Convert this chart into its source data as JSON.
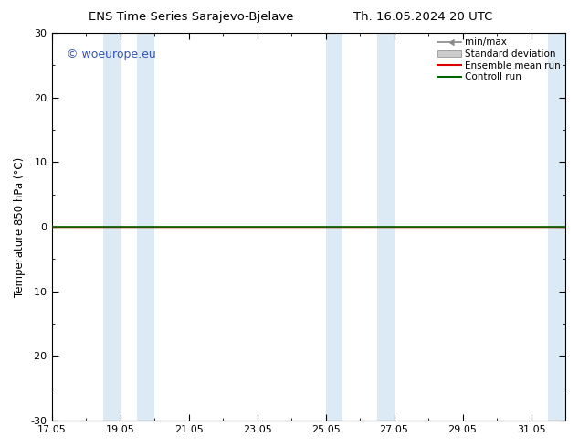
{
  "title_left": "ENS Time Series Sarajevo-Bjelave",
  "title_right": "Th. 16.05.2024 20 UTC",
  "ylabel": "Temperature 850 hPa (°C)",
  "ylim": [
    -30,
    30
  ],
  "yticks": [
    -30,
    -20,
    -10,
    0,
    10,
    20,
    30
  ],
  "xtick_labels": [
    "17.05",
    "19.05",
    "21.05",
    "23.05",
    "25.05",
    "27.05",
    "29.05",
    "31.05"
  ],
  "xtick_positions": [
    0,
    2,
    4,
    6,
    8,
    10,
    12,
    14
  ],
  "xlim": [
    0,
    15
  ],
  "watermark": "© woeurope.eu",
  "background_color": "#ffffff",
  "plot_bg_color": "#ffffff",
  "shaded_bands": [
    [
      1.5,
      2.0
    ],
    [
      2.5,
      3.0
    ],
    [
      8.0,
      8.5
    ],
    [
      9.5,
      10.0
    ],
    [
      14.5,
      15.0
    ]
  ],
  "band_color": "#dbeaf5",
  "zero_line_color": "#000000",
  "green_line_color": "#006600",
  "red_line_color": "#dd0000",
  "legend_items": [
    "min/max",
    "Standard deviation",
    "Ensemble mean run",
    "Controll run"
  ],
  "watermark_color": "#3355bb"
}
